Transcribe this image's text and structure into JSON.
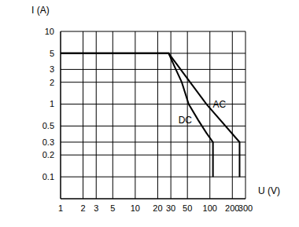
{
  "chart_data": {
    "type": "line",
    "x_label": "U (V)",
    "y_label": "I (A)",
    "log": true,
    "grid": true,
    "xlim": [
      1,
      300
    ],
    "ylim": [
      0.05,
      10
    ],
    "xticks": [
      1,
      2,
      3,
      5,
      10,
      20,
      30,
      50,
      100,
      200,
      300
    ],
    "yticks": [
      0.1,
      0.2,
      0.3,
      0.5,
      1,
      2,
      3,
      5,
      10
    ],
    "series": [
      {
        "name": "AC",
        "color": "#000000",
        "x": [
          1,
          28,
          90,
          250,
          250
        ],
        "values": [
          5,
          5,
          1,
          0.3,
          0.1
        ]
      },
      {
        "name": "DC",
        "color": "#000000",
        "x": [
          1,
          28,
          35,
          42,
          52,
          70,
          90,
          110,
          110
        ],
        "values": [
          5,
          5,
          3,
          2,
          1,
          0.6,
          0.4,
          0.3,
          0.1
        ]
      }
    ]
  }
}
